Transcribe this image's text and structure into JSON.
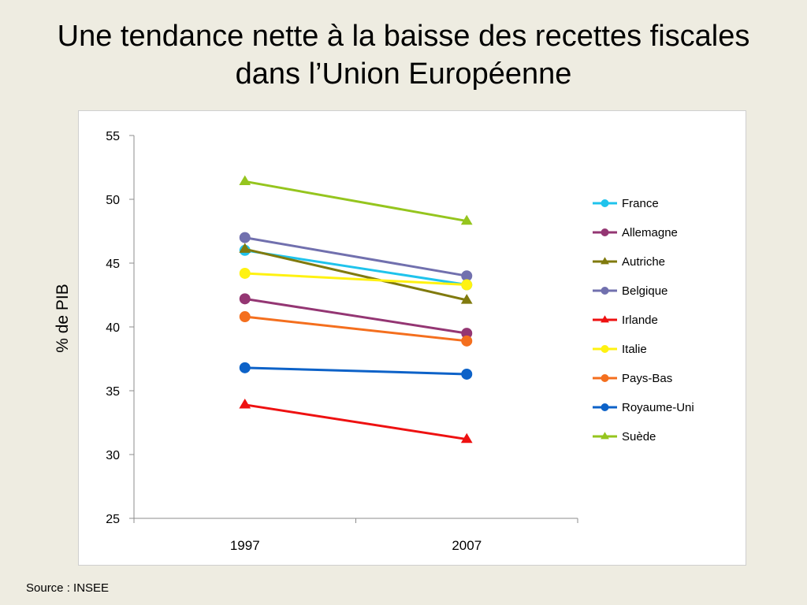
{
  "slide": {
    "title_line1": "Une tendance nette à la baisse des recettes fiscales",
    "title_line2": "dans l’Union Européenne",
    "source": "Source : INSEE"
  },
  "chart_data": {
    "type": "line",
    "title": "",
    "xlabel": "",
    "ylabel": "% de PIB",
    "categories": [
      "1997",
      "2007"
    ],
    "ylim": [
      25,
      55
    ],
    "yticks": [
      25,
      30,
      35,
      40,
      45,
      50,
      55
    ],
    "grid": false,
    "legend": "right",
    "series": [
      {
        "name": "France",
        "values": [
          46.0,
          43.3
        ],
        "color": "#1FC3EC",
        "marker": "circle"
      },
      {
        "name": "Allemagne",
        "values": [
          42.2,
          39.5
        ],
        "color": "#943673",
        "marker": "circle"
      },
      {
        "name": "Autriche",
        "values": [
          46.1,
          42.1
        ],
        "color": "#807A0E",
        "marker": "triangle"
      },
      {
        "name": "Belgique",
        "values": [
          47.0,
          44.0
        ],
        "color": "#7170AE",
        "marker": "circle"
      },
      {
        "name": "Irlande",
        "values": [
          33.9,
          31.2
        ],
        "color": "#EE1111",
        "marker": "triangle"
      },
      {
        "name": "Italie",
        "values": [
          44.2,
          43.3
        ],
        "color": "#FFF211",
        "marker": "circle"
      },
      {
        "name": "Pays-Bas",
        "values": [
          40.8,
          38.9
        ],
        "color": "#F46F1E",
        "marker": "circle"
      },
      {
        "name": "Royaume-Uni",
        "values": [
          36.8,
          36.3
        ],
        "color": "#0D62C8",
        "marker": "circle"
      },
      {
        "name": "Suède",
        "values": [
          51.4,
          48.3
        ],
        "color": "#95C51E",
        "marker": "triangle"
      }
    ]
  }
}
